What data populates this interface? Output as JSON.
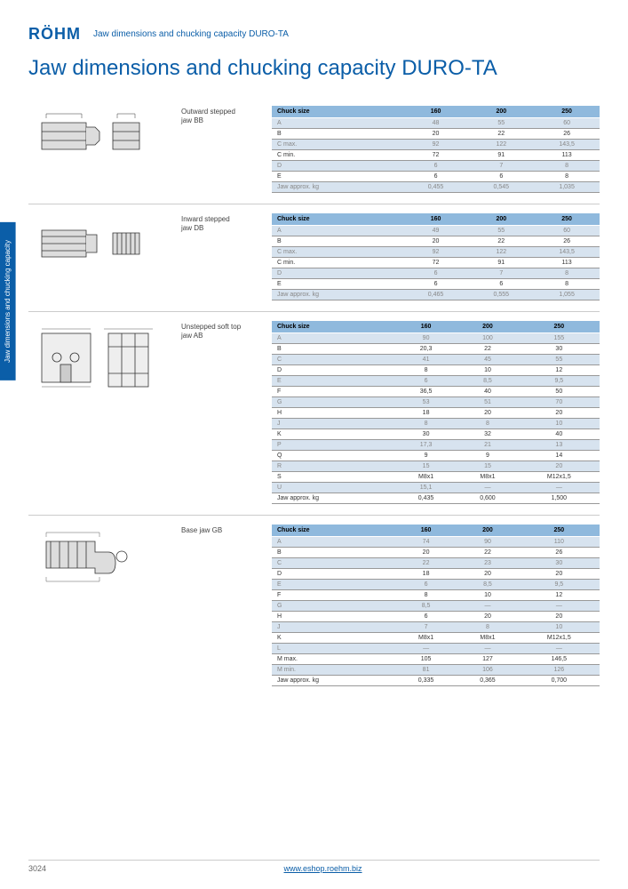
{
  "header": {
    "logo": "RÖHM",
    "breadcrumb": "Jaw dimensions and chucking capacity DURO-TA"
  },
  "title": "Jaw dimensions and chucking capacity DURO-TA",
  "side_tab": "Jaw dimensions and\nchucking capacity",
  "sections": [
    {
      "label": "Outward stepped\njaw BB",
      "columns": [
        "Chuck size",
        "160",
        "200",
        "250"
      ],
      "rows": [
        {
          "alt": true,
          "cells": [
            "A",
            "48",
            "55",
            "60"
          ]
        },
        {
          "alt": false,
          "cells": [
            "B",
            "20",
            "22",
            "26"
          ]
        },
        {
          "alt": true,
          "cells": [
            "C max.",
            "92",
            "122",
            "143,5"
          ]
        },
        {
          "alt": false,
          "cells": [
            "C min.",
            "72",
            "91",
            "113"
          ]
        },
        {
          "alt": true,
          "cells": [
            "D",
            "6",
            "7",
            "8"
          ]
        },
        {
          "alt": false,
          "cells": [
            "E",
            "6",
            "6",
            "8"
          ]
        },
        {
          "alt": true,
          "cells": [
            "Jaw approx. kg",
            "0,455",
            "0,545",
            "1,035"
          ]
        }
      ]
    },
    {
      "label": "Inward stepped\njaw DB",
      "columns": [
        "Chuck size",
        "160",
        "200",
        "250"
      ],
      "rows": [
        {
          "alt": true,
          "cells": [
            "A",
            "49",
            "55",
            "60"
          ]
        },
        {
          "alt": false,
          "cells": [
            "B",
            "20",
            "22",
            "26"
          ]
        },
        {
          "alt": true,
          "cells": [
            "C max.",
            "92",
            "122",
            "143,5"
          ]
        },
        {
          "alt": false,
          "cells": [
            "C min.",
            "72",
            "91",
            "113"
          ]
        },
        {
          "alt": true,
          "cells": [
            "D",
            "6",
            "7",
            "8"
          ]
        },
        {
          "alt": false,
          "cells": [
            "E",
            "6",
            "6",
            "8"
          ]
        },
        {
          "alt": true,
          "cells": [
            "Jaw approx. kg",
            "0,465",
            "0,555",
            "1,055"
          ]
        }
      ]
    },
    {
      "label": "Unstepped soft top\njaw AB",
      "columns": [
        "Chuck size",
        "160",
        "200",
        "250"
      ],
      "rows": [
        {
          "alt": true,
          "cells": [
            "A",
            "90",
            "100",
            "155"
          ]
        },
        {
          "alt": false,
          "cells": [
            "B",
            "20,3",
            "22",
            "30"
          ]
        },
        {
          "alt": true,
          "cells": [
            "C",
            "41",
            "45",
            "55"
          ]
        },
        {
          "alt": false,
          "cells": [
            "D",
            "8",
            "10",
            "12"
          ]
        },
        {
          "alt": true,
          "cells": [
            "E",
            "6",
            "8,5",
            "9,5"
          ]
        },
        {
          "alt": false,
          "cells": [
            "F",
            "36,5",
            "40",
            "50"
          ]
        },
        {
          "alt": true,
          "cells": [
            "G",
            "53",
            "51",
            "70"
          ]
        },
        {
          "alt": false,
          "cells": [
            "H",
            "18",
            "20",
            "20"
          ]
        },
        {
          "alt": true,
          "cells": [
            "J",
            "8",
            "8",
            "10"
          ]
        },
        {
          "alt": false,
          "cells": [
            "K",
            "30",
            "32",
            "40"
          ]
        },
        {
          "alt": true,
          "cells": [
            "P",
            "17,3",
            "21",
            "13"
          ]
        },
        {
          "alt": false,
          "cells": [
            "Q",
            "9",
            "9",
            "14"
          ]
        },
        {
          "alt": true,
          "cells": [
            "R",
            "15",
            "15",
            "20"
          ]
        },
        {
          "alt": false,
          "cells": [
            "S",
            "M8x1",
            "M8x1",
            "M12x1,5"
          ]
        },
        {
          "alt": true,
          "cells": [
            "U",
            "15,1",
            "—",
            "—"
          ]
        },
        {
          "alt": false,
          "cells": [
            "Jaw approx. kg",
            "0,435",
            "0,600",
            "1,500"
          ]
        }
      ]
    },
    {
      "label": "Base jaw GB",
      "columns": [
        "Chuck size",
        "160",
        "200",
        "250"
      ],
      "rows": [
        {
          "alt": true,
          "cells": [
            "A",
            "74",
            "90",
            "110"
          ]
        },
        {
          "alt": false,
          "cells": [
            "B",
            "20",
            "22",
            "26"
          ]
        },
        {
          "alt": true,
          "cells": [
            "C",
            "22",
            "23",
            "30"
          ]
        },
        {
          "alt": false,
          "cells": [
            "D",
            "18",
            "20",
            "20"
          ]
        },
        {
          "alt": true,
          "cells": [
            "E",
            "6",
            "8,5",
            "9,5"
          ]
        },
        {
          "alt": false,
          "cells": [
            "F",
            "8",
            "10",
            "12"
          ]
        },
        {
          "alt": true,
          "cells": [
            "G",
            "8,5",
            "—",
            "—"
          ]
        },
        {
          "alt": false,
          "cells": [
            "H",
            "6",
            "20",
            "20"
          ]
        },
        {
          "alt": true,
          "cells": [
            "J",
            "7",
            "8",
            "10"
          ]
        },
        {
          "alt": false,
          "cells": [
            "K",
            "M8x1",
            "M8x1",
            "M12x1,5"
          ]
        },
        {
          "alt": true,
          "cells": [
            "L",
            "—",
            "—",
            "—"
          ]
        },
        {
          "alt": false,
          "cells": [
            "M max.",
            "105",
            "127",
            "146,5"
          ]
        },
        {
          "alt": true,
          "cells": [
            "M min.",
            "81",
            "106",
            "126"
          ]
        },
        {
          "alt": false,
          "cells": [
            "Jaw approx. kg",
            "0,335",
            "0,365",
            "0,700"
          ]
        }
      ]
    }
  ],
  "footer": {
    "pageno": "3024",
    "url": "www.eshop.roehm.biz"
  },
  "colors": {
    "brand": "#0b5ea8",
    "header_bg": "#8fb9dd",
    "alt_bg": "#d7e3ef"
  }
}
